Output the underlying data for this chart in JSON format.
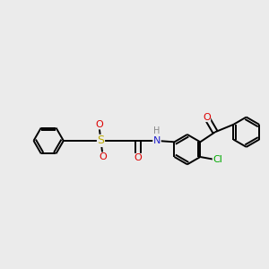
{
  "background_color": "#ebebeb",
  "atom_colors": {
    "C": "#000000",
    "N": "#2222cc",
    "O": "#dd0000",
    "S": "#bbaa00",
    "Cl": "#00aa00",
    "H": "#888888"
  },
  "bond_color": "#000000",
  "bond_width": 1.4,
  "font_size": 8,
  "fig_size": [
    3.0,
    3.0
  ],
  "dpi": 100,
  "xlim": [
    0.0,
    10.0
  ],
  "ylim": [
    0.0,
    10.0
  ]
}
